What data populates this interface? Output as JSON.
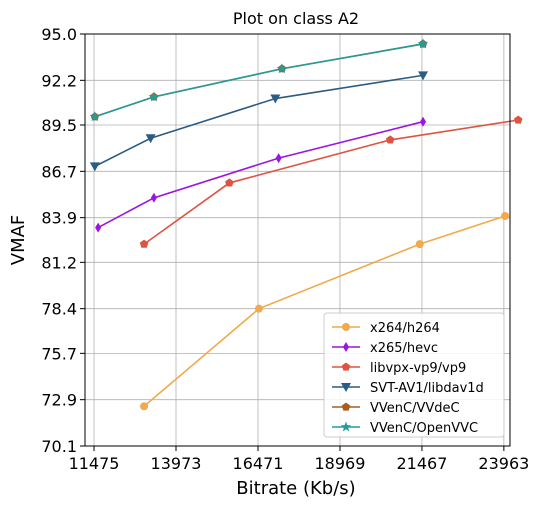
{
  "chart_data": {
    "type": "line",
    "title": "Plot on class A2",
    "xlabel": "Bitrate (Kb/s)",
    "ylabel": "VMAF",
    "xlim": [
      11200,
      24150
    ],
    "ylim": [
      70.1,
      95.0
    ],
    "xticks": [
      11475,
      13973,
      16471,
      18969,
      21467,
      23963
    ],
    "yticks": [
      70.1,
      72.9,
      75.7,
      78.4,
      81.2,
      83.9,
      86.7,
      89.5,
      92.2,
      95.0
    ],
    "xtick_labels": [
      "11475",
      "13973",
      "16471",
      "18969",
      "21467",
      "23963"
    ],
    "ytick_labels": [
      "70.1",
      "72.9",
      "75.7",
      "78.4",
      "81.2",
      "83.9",
      "86.7",
      "89.5",
      "92.2",
      "95.0"
    ],
    "grid": true,
    "legend_position": "lower-right",
    "series": [
      {
        "name": "x264/h264",
        "color": "#f0a94b",
        "marker": "circle",
        "x": [
          13000,
          16500,
          21400,
          24000
        ],
        "y": [
          72.5,
          78.4,
          82.3,
          84.0
        ]
      },
      {
        "name": "x265/hevc",
        "color": "#9b14df",
        "marker": "thin-diamond",
        "x": [
          11600,
          13300,
          17100,
          21500
        ],
        "y": [
          83.3,
          85.1,
          87.5,
          89.7
        ]
      },
      {
        "name": "libvpx-vp9/vp9",
        "color": "#df5343",
        "marker": "pentagon",
        "x": [
          13000,
          15600,
          20500,
          24400
        ],
        "y": [
          82.3,
          86.0,
          88.6,
          89.8
        ]
      },
      {
        "name": "SVT-AV1/libdav1d",
        "color": "#2b5c83",
        "marker": "triangle-down",
        "x": [
          11500,
          13200,
          17000,
          21500
        ],
        "y": [
          87.0,
          88.7,
          91.1,
          92.5
        ]
      },
      {
        "name": "VVenC/VVdeC",
        "color": "#a65e1e",
        "marker": "pentagon",
        "x": [
          11500,
          13300,
          17200,
          21500
        ],
        "y": [
          90.0,
          91.2,
          92.9,
          94.4
        ]
      },
      {
        "name": "VVenC/OpenVVC",
        "color": "#239c9c",
        "marker": "star",
        "x": [
          11500,
          13300,
          17200,
          21500
        ],
        "y": [
          90.0,
          91.2,
          92.9,
          94.4
        ]
      }
    ]
  }
}
